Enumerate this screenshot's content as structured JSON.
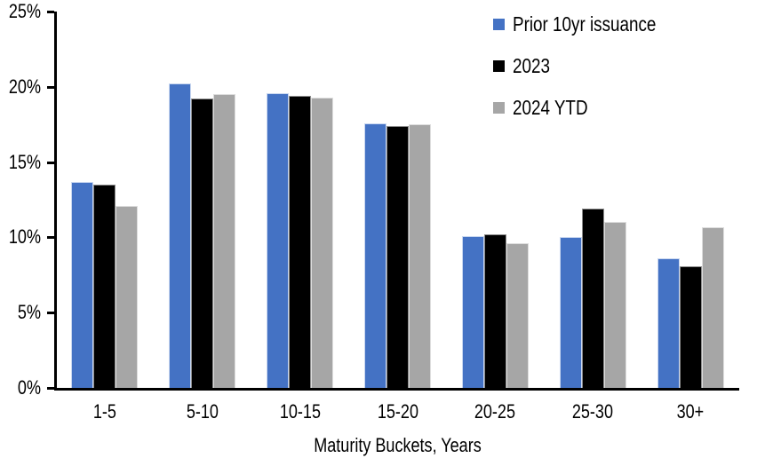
{
  "chart_data": {
    "type": "bar",
    "title": "",
    "xlabel": "Maturity Buckets, Years",
    "ylabel": "",
    "categories": [
      "1-5",
      "5-10",
      "10-15",
      "15-20",
      "20-25",
      "25-30",
      "30+"
    ],
    "series": [
      {
        "name": "Prior 10yr issuance",
        "color": "#4472C4",
        "border_color": "#C9D7F0",
        "values": [
          13.7,
          20.2,
          19.6,
          17.6,
          10.1,
          10.0,
          8.6
        ]
      },
      {
        "name": "2023",
        "color": "#000000",
        "border_color": "#8C8C8C",
        "values": [
          13.5,
          19.2,
          19.4,
          17.4,
          10.2,
          11.9,
          8.1
        ]
      },
      {
        "name": "2024 YTD",
        "color": "#A6A6A6",
        "border_color": "#DDDDDD",
        "values": [
          12.1,
          19.5,
          19.3,
          17.5,
          9.6,
          11.0,
          10.7
        ]
      }
    ],
    "ylim": [
      0,
      25
    ],
    "ytick_step": 5,
    "yticks": [
      "0%",
      "5%",
      "10%",
      "15%",
      "20%",
      "25%"
    ],
    "legend_position": "top-right",
    "grid": false,
    "axis_color": "#000000"
  }
}
